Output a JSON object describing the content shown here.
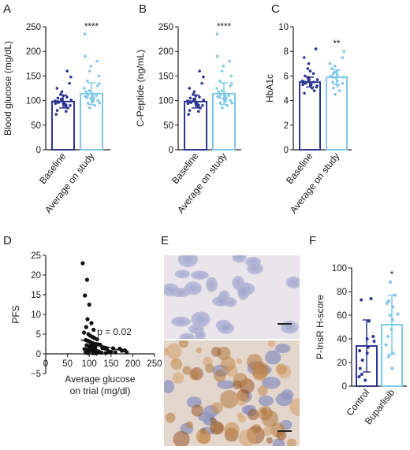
{
  "colors": {
    "baseline": "#2e3592",
    "study": "#7fc8ec",
    "control": "#2e3592",
    "buparlisib": "#7fc8ec",
    "scatter": "#111111",
    "axis": "#1a1a1a"
  },
  "panels": {
    "A": "A",
    "B": "B",
    "C": "C",
    "D": "D",
    "E": "E",
    "F": "F"
  },
  "chart_data": [
    {
      "panel": "A",
      "type": "bar",
      "ylabel": "Blood glucose (mg/dL)",
      "ylim": [
        0,
        250
      ],
      "yticks": [
        "0",
        "50",
        "100",
        "150",
        "200",
        "250"
      ],
      "categories": [
        "Baseline",
        "Average on study"
      ],
      "values": [
        98,
        114
      ],
      "errors": [
        13,
        22
      ],
      "significance": "****",
      "points": [
        [
          80,
          85,
          88,
          90,
          92,
          93,
          94,
          95,
          96,
          97,
          98,
          99,
          100,
          101,
          102,
          103,
          105,
          107,
          110,
          113,
          118,
          125,
          135,
          148,
          160,
          72,
          78,
          91,
          95,
          99
        ],
        [
          85,
          90,
          95,
          98,
          100,
          102,
          104,
          106,
          108,
          110,
          112,
          115,
          118,
          120,
          125,
          130,
          135,
          140,
          150,
          160,
          170,
          180,
          190,
          235,
          95,
          100,
          105,
          110
        ]
      ]
    },
    {
      "panel": "B",
      "type": "bar",
      "ylabel": "C-Peptide (ng/mL)",
      "ylim": [
        0,
        250
      ],
      "yticks": [
        "0",
        "50",
        "100",
        "150",
        "200",
        "250"
      ],
      "categories": [
        "Baseline",
        "Average on study"
      ],
      "values": [
        98,
        114
      ],
      "errors": [
        13,
        22
      ],
      "significance": "****",
      "points": [
        [
          80,
          85,
          88,
          90,
          92,
          93,
          94,
          95,
          96,
          97,
          98,
          99,
          100,
          101,
          102,
          103,
          105,
          107,
          110,
          113,
          118,
          125,
          135,
          148,
          160,
          72,
          78,
          91,
          95,
          99
        ],
        [
          85,
          90,
          95,
          98,
          100,
          102,
          104,
          106,
          108,
          110,
          112,
          115,
          118,
          120,
          125,
          130,
          135,
          140,
          150,
          160,
          170,
          180,
          190,
          235,
          95,
          100,
          105,
          110
        ]
      ]
    },
    {
      "panel": "C",
      "type": "bar",
      "ylabel": "HbA1c",
      "ylim": [
        0,
        10
      ],
      "yticks": [
        "0",
        "2",
        "4",
        "6",
        "8",
        "10"
      ],
      "categories": [
        "Baseline",
        "Average on study"
      ],
      "values": [
        5.5,
        5.9
      ],
      "errors": [
        0.4,
        0.6
      ],
      "significance": "**",
      "points": [
        [
          4.6,
          4.8,
          5.0,
          5.1,
          5.2,
          5.3,
          5.3,
          5.4,
          5.4,
          5.5,
          5.5,
          5.6,
          5.6,
          5.7,
          5.8,
          5.9,
          6.0,
          6.2,
          6.4,
          6.6,
          7.0,
          7.5,
          8.2,
          5.2,
          5.5
        ],
        [
          4.5,
          4.8,
          5.0,
          5.2,
          5.4,
          5.6,
          5.8,
          5.9,
          6.0,
          6.1,
          6.2,
          6.4,
          6.6,
          6.8,
          7.0,
          7.5,
          8.0,
          5.5,
          5.9,
          6.3
        ]
      ]
    },
    {
      "panel": "D",
      "type": "scatter",
      "xlabel_line1": "Average glucose",
      "xlabel_line2": "on trial (mg/dl)",
      "ylabel": "PFS",
      "xlim": [
        0,
        250
      ],
      "ylim": [
        -5,
        25
      ],
      "xticks": [
        "0",
        "50",
        "100",
        "150",
        "200",
        "250"
      ],
      "yticks": [
        "−5",
        "0",
        "5",
        "10",
        "15",
        "20",
        "25"
      ],
      "annotation": "p = 0.02",
      "points": [
        [
          85,
          23
        ],
        [
          95,
          18.8
        ],
        [
          90,
          14.8
        ],
        [
          100,
          12.5
        ],
        [
          96,
          8.8
        ],
        [
          105,
          7.8
        ],
        [
          93,
          6.8
        ],
        [
          110,
          6.1
        ],
        [
          88,
          5.4
        ],
        [
          98,
          5.0
        ],
        [
          102,
          4.6
        ],
        [
          107,
          4.3
        ],
        [
          112,
          4.0
        ],
        [
          118,
          3.7
        ],
        [
          92,
          3.5
        ],
        [
          97,
          3.3
        ],
        [
          101,
          3.1
        ],
        [
          104,
          2.9
        ],
        [
          108,
          2.7
        ],
        [
          115,
          2.5
        ],
        [
          120,
          2.4
        ],
        [
          125,
          2.3
        ],
        [
          94,
          2.2
        ],
        [
          99,
          2.0
        ],
        [
          103,
          1.9
        ],
        [
          106,
          1.8
        ],
        [
          110,
          1.7
        ],
        [
          114,
          1.6
        ],
        [
          130,
          1.5
        ],
        [
          135,
          1.4
        ],
        [
          140,
          1.3
        ],
        [
          89,
          1.2
        ],
        [
          96,
          1.1
        ],
        [
          100,
          1.0
        ],
        [
          105,
          0.9
        ],
        [
          111,
          0.8
        ],
        [
          117,
          0.7
        ],
        [
          122,
          0.6
        ],
        [
          145,
          0.6
        ],
        [
          150,
          0.5
        ],
        [
          160,
          0.4
        ],
        [
          170,
          1.3
        ],
        [
          175,
          0.8
        ],
        [
          182,
          0.9
        ],
        [
          186,
          0.4
        ],
        [
          92,
          0.3
        ],
        [
          98,
          0.2
        ],
        [
          108,
          0.2
        ],
        [
          116,
          0.1
        ],
        [
          128,
          0.3
        ],
        [
          138,
          0.2
        ],
        [
          155,
          1.4
        ]
      ]
    },
    {
      "panel": "F",
      "type": "bar",
      "ylabel": "P-InsR H-score",
      "ylim": [
        0,
        100
      ],
      "yticks": [
        "0",
        "20",
        "40",
        "60",
        "80",
        "100"
      ],
      "categories": [
        "Control",
        "Buparlisib"
      ],
      "values": [
        34,
        52
      ],
      "errors": [
        22,
        25
      ],
      "significance": "*",
      "points": [
        [
          73,
          74,
          55,
          42,
          40,
          33,
          30,
          28,
          22,
          15,
          10,
          8,
          5,
          38
        ],
        [
          88,
          77,
          72,
          67,
          61,
          56,
          48,
          42,
          35,
          28,
          25,
          15,
          70,
          60
        ]
      ]
    }
  ]
}
